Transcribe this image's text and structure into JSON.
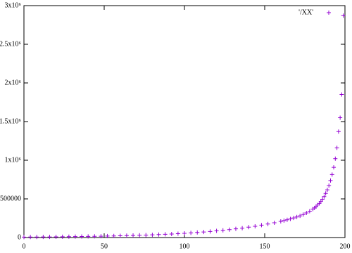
{
  "chart_data": {
    "type": "scatter",
    "marker": "plus",
    "color": "#9400d3",
    "series": [
      {
        "name": "'/XX'",
        "color": "#9400d3",
        "x": [
          0,
          4,
          8,
          12,
          16,
          20,
          24,
          28,
          32,
          36,
          40,
          44,
          48,
          52,
          56,
          60,
          64,
          68,
          72,
          76,
          80,
          84,
          88,
          92,
          96,
          100,
          104,
          108,
          112,
          116,
          120,
          124,
          128,
          132,
          136,
          140,
          144,
          148,
          152,
          156,
          160,
          162,
          164,
          166,
          168,
          170,
          172,
          174,
          176,
          178,
          180,
          181,
          182,
          183,
          184,
          185,
          186,
          187,
          188,
          189,
          190,
          191,
          192,
          193,
          194,
          195,
          196,
          197,
          198,
          199
        ],
        "values": [
          6000,
          6500,
          7100,
          7800,
          8500,
          9300,
          10200,
          11100,
          12200,
          13300,
          14500,
          15900,
          17300,
          18900,
          20700,
          22600,
          24700,
          27000,
          29500,
          32300,
          35300,
          38500,
          42100,
          46000,
          50300,
          55000,
          60100,
          65700,
          71800,
          78500,
          85800,
          93700,
          102000,
          112000,
          122000,
          134000,
          146000,
          160000,
          175000,
          191000,
          209000,
          219000,
          230000,
          241000,
          253000,
          266000,
          281000,
          298000,
          318000,
          341000,
          368000,
          383000,
          400000,
          420000,
          442000,
          467000,
          496000,
          530000,
          570000,
          617000,
          672000,
          737000,
          815000,
          908000,
          1020000,
          1160000,
          1370000,
          1550000,
          1850000,
          2870000
        ]
      }
    ],
    "xlim": [
      0,
      200
    ],
    "xticks": [
      0,
      50,
      100,
      150,
      200
    ],
    "ylim": [
      0,
      3000000
    ],
    "yticks": [
      0,
      500000,
      {
        "value": 1000000,
        "label": "1x10⁶"
      },
      {
        "value": 1500000,
        "label": "1.5x10⁶"
      },
      {
        "value": 2000000,
        "label": "2x10⁶"
      },
      {
        "value": 2500000,
        "label": "2.5x10⁶"
      },
      {
        "value": 3000000,
        "label": "3x10⁶"
      }
    ],
    "grid": false,
    "legend": "top-right"
  }
}
